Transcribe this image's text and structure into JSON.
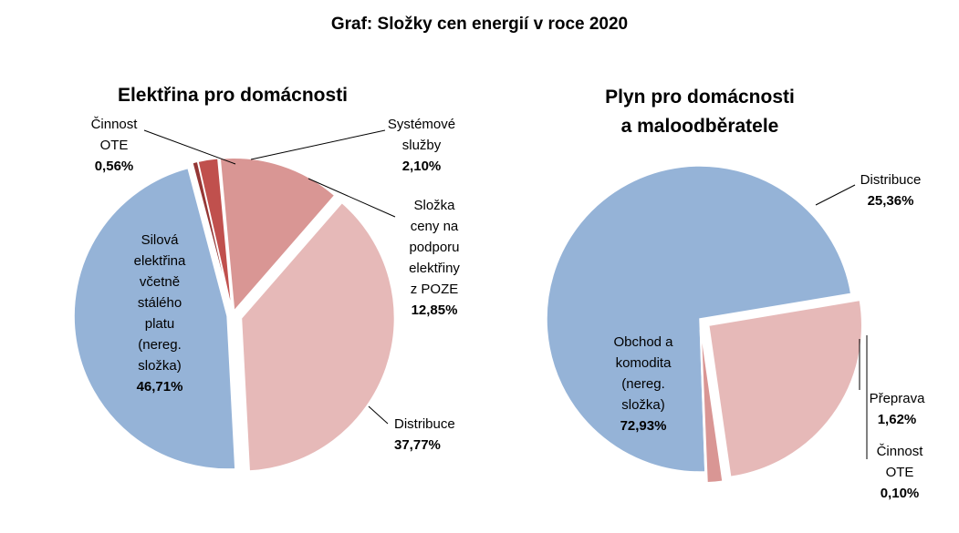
{
  "title": "Graf: Složky cen energií v roce 2020",
  "chart_data": [
    {
      "type": "pie",
      "title": "Elektřina pro domácnosti",
      "slices": [
        {
          "label": [
            "Silová",
            "elektřina",
            "včetně",
            "stálého",
            "platu",
            "(nereg.",
            "složka)"
          ],
          "value_label": "46,71%",
          "value": 46.71,
          "color": "#95B3D7"
        },
        {
          "label": [
            "Činnost",
            "OTE"
          ],
          "value_label": "0,56%",
          "value": 0.56,
          "color": "#953735"
        },
        {
          "label": [
            "Systémové",
            "služby"
          ],
          "value_label": "2,10%",
          "value": 2.1,
          "color": "#C0504D"
        },
        {
          "label": [
            "Složka",
            "ceny na",
            "podporu",
            "elektřiny",
            "z POZE"
          ],
          "value_label": "12,85%",
          "value": 12.85,
          "color": "#D99694"
        },
        {
          "label": [
            "Distribuce"
          ],
          "value_label": "37,77%",
          "value": 37.77,
          "color": "#E6B9B8"
        }
      ]
    },
    {
      "type": "pie",
      "title": [
        "Plyn pro domácnosti",
        "a maloodběratele"
      ],
      "slices": [
        {
          "label": [
            "Obchod a",
            "komodita",
            "(nereg.",
            "složka)"
          ],
          "value_label": "72,93%",
          "value": 72.93,
          "color": "#95B3D7"
        },
        {
          "label": [
            "Distribuce"
          ],
          "value_label": "25,36%",
          "value": 25.36,
          "color": "#E6B9B8"
        },
        {
          "label": [
            "Přeprava"
          ],
          "value_label": "1,62%",
          "value": 1.62,
          "color": "#D99694"
        },
        {
          "label": [
            "Činnost",
            "OTE"
          ],
          "value_label": "0,10%",
          "value": 0.1,
          "color": "#953735"
        }
      ]
    }
  ]
}
